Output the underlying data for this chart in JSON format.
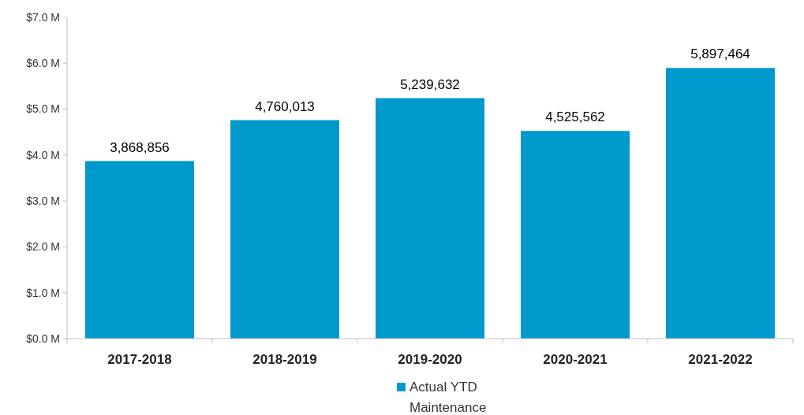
{
  "chart_data": {
    "type": "bar",
    "categories": [
      "2017-2018",
      "2018-2019",
      "2019-2020",
      "2020-2021",
      "2021-2022"
    ],
    "series": [
      {
        "name": "Actual YTD Maintenance",
        "color": "#0099cc",
        "values": [
          3868856,
          4760013,
          5239632,
          4525562,
          5897464
        ],
        "value_labels": [
          "3,868,856",
          "4,760,013",
          "5,239,632",
          "4,525,562",
          "5,897,464"
        ]
      }
    ],
    "ylim": [
      0,
      7000000
    ],
    "yticks": [
      {
        "value": 0,
        "label": "$0.0 M"
      },
      {
        "value": 1000000,
        "label": "$1.0 M"
      },
      {
        "value": 2000000,
        "label": "$2.0 M"
      },
      {
        "value": 3000000,
        "label": "$3.0 M"
      },
      {
        "value": 4000000,
        "label": "$4.0 M"
      },
      {
        "value": 5000000,
        "label": "$5.0 M"
      },
      {
        "value": 6000000,
        "label": "$6.0 M"
      },
      {
        "value": 7000000,
        "label": "$7.0 M"
      }
    ],
    "grid": false,
    "legend": "bottom"
  }
}
